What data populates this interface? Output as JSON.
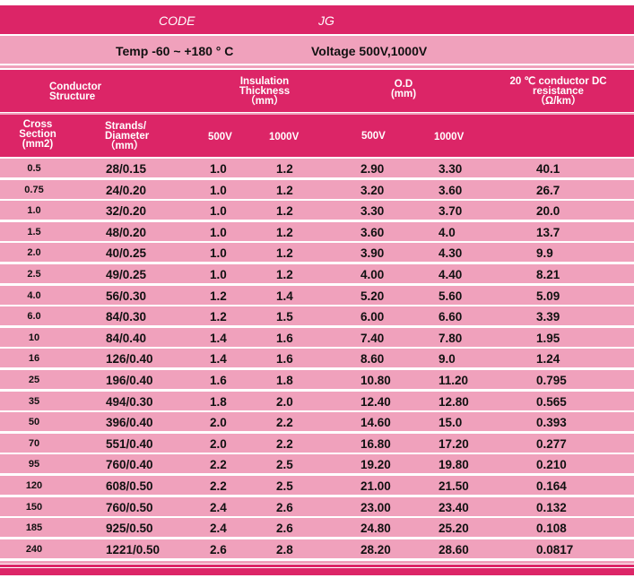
{
  "header": {
    "code_label": "CODE",
    "code_value": "JG",
    "temp": "Temp  -60 ~ +180 ° C",
    "voltage": "Voltage 500V,1000V"
  },
  "columns": {
    "conductor": "Conductor Structure",
    "insulation": "Insulation Thickness",
    "insulation_unit": "（mm）",
    "od": "O.D",
    "od_unit": "(mm)",
    "resistance": "20 ℃ conductor DC resistance",
    "resistance_unit": "（Ω/km）",
    "cross": "Cross Section (mm2)",
    "strands": "Strands/ Diameter",
    "strands_unit": "（mm）",
    "ins_500": "500V",
    "ins_1000": "1000V",
    "od_500": "500V",
    "od_1000": "1000V"
  },
  "rows": [
    [
      "0.5",
      "28/0.15",
      "1.0",
      "1.2",
      "2.90",
      "3.30",
      "40.1"
    ],
    [
      "0.75",
      "24/0.20",
      "1.0",
      "1.2",
      "3.20",
      "3.60",
      "26.7"
    ],
    [
      "1.0",
      "32/0.20",
      "1.0",
      "1.2",
      "3.30",
      "3.70",
      "20.0"
    ],
    [
      "1.5",
      "48/0.20",
      "1.0",
      "1.2",
      "3.60",
      "4.0",
      "13.7"
    ],
    [
      "2.0",
      "40/0.25",
      "1.0",
      "1.2",
      "3.90",
      "4.30",
      "9.9"
    ],
    [
      "2.5",
      "49/0.25",
      "1.0",
      "1.2",
      "4.00",
      "4.40",
      "8.21"
    ],
    [
      "4.0",
      "56/0.30",
      "1.2",
      "1.4",
      "5.20",
      "5.60",
      "5.09"
    ],
    [
      "6.0",
      "84/0.30",
      "1.2",
      "1.5",
      "6.00",
      "6.60",
      "3.39"
    ],
    [
      "10",
      "84/0.40",
      "1.4",
      "1.6",
      "7.40",
      "7.80",
      "1.95"
    ],
    [
      "16",
      "126/0.40",
      "1.4",
      "1.6",
      "8.60",
      "9.0",
      "1.24"
    ],
    [
      "25",
      "196/0.40",
      "1.6",
      "1.8",
      "10.80",
      "11.20",
      "0.795"
    ],
    [
      "35",
      "494/0.30",
      "1.8",
      "2.0",
      "12.40",
      "12.80",
      "0.565"
    ],
    [
      "50",
      "396/0.40",
      "2.0",
      "2.2",
      "14.60",
      "15.0",
      "0.393"
    ],
    [
      "70",
      "551/0.40",
      "2.0",
      "2.2",
      "16.80",
      "17.20",
      "0.277"
    ],
    [
      "95",
      "760/0.40",
      "2.2",
      "2.5",
      "19.20",
      "19.80",
      "0.210"
    ],
    [
      "120",
      "608/0.50",
      "2.2",
      "2.5",
      "21.00",
      "21.50",
      "0.164"
    ],
    [
      "150",
      "760/0.50",
      "2.4",
      "2.6",
      "23.00",
      "23.40",
      "0.132"
    ],
    [
      "185",
      "925/0.50",
      "2.4",
      "2.6",
      "24.80",
      "25.20",
      "0.108"
    ],
    [
      "240",
      "1221/0.50",
      "2.6",
      "2.8",
      "28.20",
      "28.60",
      "0.0817"
    ]
  ]
}
